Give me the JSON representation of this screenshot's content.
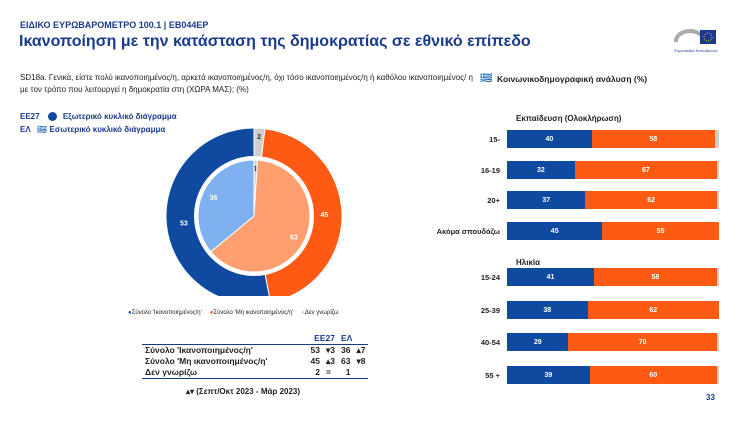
{
  "header": {
    "kicker": "ΕΙΔΙΚΟ ΕΥΡΩΒΑΡΟΜΕΤΡΟ 100.1 | EB044EP",
    "title": "Ικανοποίηση με την κατάσταση της δημοκρατίας σε εθνικό επίπεδο",
    "logo_text": "Ευρωπαϊκό Κοινοβούλιο"
  },
  "question": "SD18a. Γενικά, είστε πολύ ικανοποιημένος/η, αρκετά ικανοποιημένος/η, όχι τόσο ικανοποιημένος/η ή καθόλου ικανοποιημένος/ η με τον τρόπο που λειτουργεί η δημοκρατία στη (ΧΩΡΑ ΜΑΣ); (%)",
  "socio_title": "Κοινωνικοδημογραφική ανάλυση (%)",
  "pie_legend": {
    "outer_code": "ΕΕ27",
    "outer_label": "Εξωτερικό κυκλικό διάγραμμα",
    "inner_code": "ΕΛ",
    "inner_label": "Εσωτερικό κυκλικό διάγραμμα"
  },
  "colors": {
    "satisfied": "#0f4aa0",
    "not_satisfied": "#ff5a14",
    "dk": "#cfcfcf",
    "inner_satisfied": "#7fb0f0",
    "inner_not": "#ff9f70"
  },
  "chart_data": [
    {
      "type": "pie",
      "title": "",
      "series": [
        {
          "name": "ΕΕ27",
          "values": {
            "satisfied": 53,
            "not_satisfied": 45,
            "dk": 2
          }
        },
        {
          "name": "ΕΛ",
          "values": {
            "satisfied": 36,
            "not_satisfied": 63,
            "dk": 1
          }
        }
      ],
      "legend": [
        "Σύνολο 'Ικανοποιημένος/η'",
        "Σύνολο 'Μη ικανοποιημένος/η'",
        "Δεν γνωρίζω"
      ],
      "legend_position": "bottom"
    },
    {
      "type": "bar",
      "stacked": true,
      "orientation": "horizontal",
      "groups": [
        {
          "title": "Εκπαίδευση (Ολοκλήρωση)",
          "categories": [
            "15-",
            "16-19",
            "20+",
            "Ακόμα σπουδάζω"
          ],
          "satisfied": [
            40,
            32,
            37,
            45
          ],
          "not_satisfied": [
            58,
            67,
            62,
            55
          ],
          "dk": [
            2,
            1,
            1,
            0
          ]
        },
        {
          "title": "Ηλικία",
          "categories": [
            "15-24",
            "25-39",
            "40-54",
            "55 +"
          ],
          "satisfied": [
            41,
            38,
            29,
            39
          ],
          "not_satisfied": [
            58,
            62,
            70,
            60
          ],
          "dk": [
            1,
            0,
            1,
            1
          ]
        }
      ]
    }
  ],
  "table": {
    "headers": [
      "ΕΕ27",
      "ΕΛ"
    ],
    "rows": [
      {
        "label": "Σύνολο 'Ικανοποιημένος/η'",
        "eu": "53",
        "eu_ch": "▾3",
        "gr": "36",
        "gr_ch": "▴7"
      },
      {
        "label": "Σύνολο 'Μη ικανοποιημένος/η'",
        "eu": "45",
        "eu_ch": "▴3",
        "gr": "63",
        "gr_ch": "▾8"
      },
      {
        "label": "Δεν γνωρίζω",
        "eu": "2",
        "eu_ch": "=",
        "gr": "1",
        "gr_ch": ""
      }
    ],
    "footnote": "▴▾ (Σεπτ/Οκτ 2023 - Μάρ 2023)"
  },
  "page_number": "33"
}
